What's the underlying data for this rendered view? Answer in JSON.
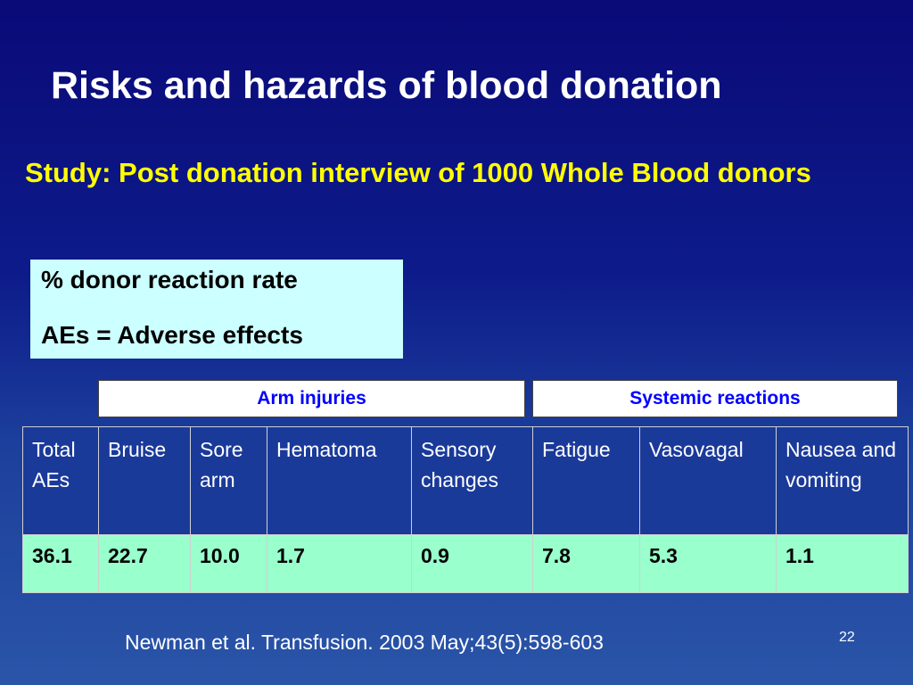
{
  "slide": {
    "title": "Risks and hazards of blood donation",
    "subtitle": "Study: Post donation interview of 1000 Whole Blood donors",
    "legend": {
      "line1": "% donor reaction rate",
      "line2": "AEs = Adverse effects"
    },
    "groups": {
      "arm_injuries": "Arm injuries",
      "systemic_reactions": "Systemic reactions"
    },
    "table": {
      "headers": [
        "Total AEs",
        "Bruise",
        "Sore arm",
        "Hematoma",
        "Sensory changes",
        "Fatigue",
        "Vasovagal",
        "Nausea and vomiting"
      ],
      "values": [
        "36.1",
        "22.7",
        "10.0",
        "1.7",
        "0.9",
        "7.8",
        "5.3",
        "1.1"
      ]
    },
    "citation": "Newman et al. Transfusion. 2003 May;43(5):598-603",
    "page_number": "22"
  },
  "colors": {
    "background_top": "#0a0a78",
    "background_bottom": "#2a55a8",
    "title": "#ffffff",
    "subtitle": "#ffff00",
    "legend_box": "#ccffff",
    "group_header_text": "#0000ff",
    "values_row": "#99ffcc"
  }
}
